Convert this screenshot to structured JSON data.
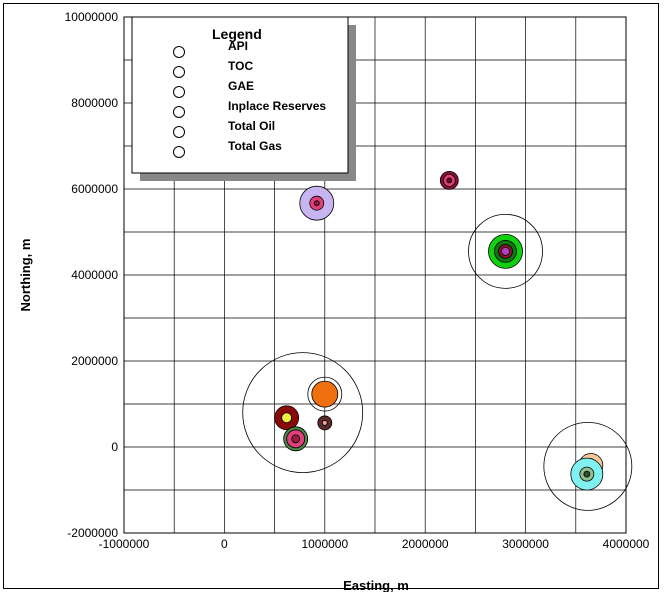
{
  "chart_data": {
    "type": "scatter",
    "title": "",
    "xlabel": "Easting, m",
    "ylabel": "Northing, m",
    "xlim": [
      -1000000,
      4000000
    ],
    "ylim": [
      -2000000,
      10000000
    ],
    "grid": true,
    "x_tick_labels": [
      "-1000000",
      "0",
      "1000000",
      "2000000",
      "3000000",
      "4000000"
    ],
    "y_tick_labels": [
      "-2000000",
      "0",
      "2000000",
      "4000000",
      "6000000",
      "8000000",
      "10000000"
    ],
    "legend": {
      "title": "Legend",
      "position": "top-left",
      "entries": [
        "API",
        "TOC",
        "GAE",
        "Inplace Reserves",
        "Total Oil",
        "Total Gas"
      ]
    },
    "points": [
      {
        "x": 920000,
        "y": 5670000,
        "rings": [
          {
            "r": 17,
            "color": "#c8b4f0"
          },
          {
            "r": 7,
            "color": "#e0407a"
          },
          {
            "r": 2.5,
            "color": "#9a1b3d"
          }
        ]
      },
      {
        "x": 2240000,
        "y": 6200000,
        "rings": [
          {
            "r": 9,
            "color": "#8a1030"
          },
          {
            "r": 6,
            "color": "#e0407a"
          },
          {
            "r": 2.5,
            "color": "#6a0a20"
          }
        ]
      },
      {
        "x": 2800000,
        "y": 4550000,
        "rings": [
          {
            "r": 37,
            "color": "#ffffff"
          },
          {
            "r": 17,
            "color": "#10d010"
          },
          {
            "r": 11,
            "color": "#0a7a0a"
          },
          {
            "r": 7,
            "color": "#8a1030"
          },
          {
            "r": 4,
            "color": "#b040c0"
          }
        ]
      },
      {
        "x": 780000,
        "y": 800000,
        "rings": [
          {
            "r": 60,
            "color": "#ffffff"
          }
        ]
      },
      {
        "x": 1000000,
        "y": 1230000,
        "rings": [
          {
            "r": 17,
            "color": "#ffffff"
          },
          {
            "r": 13,
            "color": "#f07010"
          }
        ]
      },
      {
        "x": 620000,
        "y": 680000,
        "rings": [
          {
            "r": 12,
            "color": "#8a0a0a"
          },
          {
            "r": 5,
            "color": "#f0f040"
          }
        ]
      },
      {
        "x": 1000000,
        "y": 560000,
        "rings": [
          {
            "r": 7,
            "color": "#5a2a2a"
          },
          {
            "r": 2.5,
            "color": "#f0a0a0"
          }
        ]
      },
      {
        "x": 710000,
        "y": 190000,
        "rings": [
          {
            "r": 12,
            "color": "#4a8a4a"
          },
          {
            "r": 9,
            "color": "#e0407a"
          },
          {
            "r": 4,
            "color": "#9a1b3d"
          }
        ]
      },
      {
        "x": 3620000,
        "y": -450000,
        "rings": [
          {
            "r": 44,
            "color": "#ffffff"
          }
        ]
      },
      {
        "x": 3650000,
        "y": -430000,
        "rings": [
          {
            "r": 12,
            "color": "#f7c89a"
          }
        ]
      },
      {
        "x": 3640000,
        "y": -430000,
        "rings": [
          {
            "r": 7,
            "color": "#b020b0"
          },
          {
            "r": 3,
            "color": "#4a0a4a"
          }
        ]
      },
      {
        "x": 3610000,
        "y": -630000,
        "rings": [
          {
            "r": 16,
            "color": "#80f0f0"
          },
          {
            "r": 7,
            "color": "#90c090"
          },
          {
            "r": 3,
            "color": "#305030"
          }
        ]
      }
    ]
  }
}
